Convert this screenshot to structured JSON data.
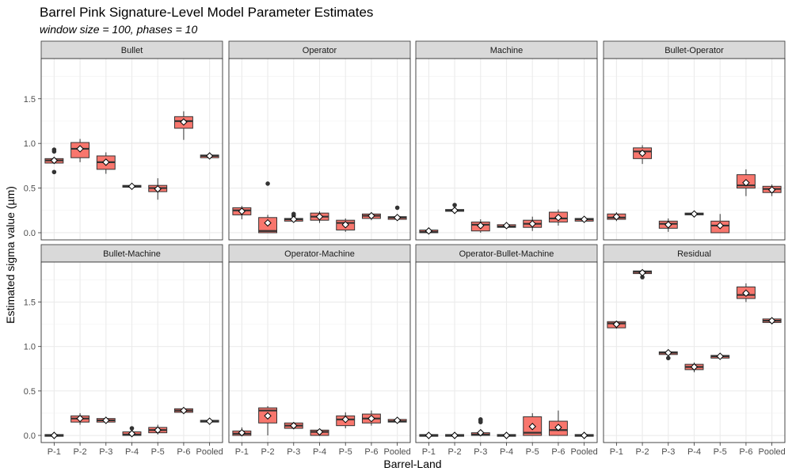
{
  "title": "Barrel Pink Signature-Level Model Parameter Estimates",
  "subtitle": "window size = 100, phases = 10",
  "chart_data": {
    "type": "box",
    "xlabel": "Barrel-Land",
    "ylabel": "Estimated sigma value (µm)",
    "categories": [
      "P-1",
      "P-2",
      "P-3",
      "P-4",
      "P-5",
      "P-6",
      "Pooled"
    ],
    "ylim": [
      -0.08,
      1.95
    ],
    "yticks": [
      0.0,
      0.5,
      1.0,
      1.5
    ],
    "ytick_labels": [
      "0.0",
      "0.5",
      "1.0",
      "1.5"
    ],
    "grid": true,
    "box_fill": "#F8766D",
    "box_stroke": "#333333",
    "panels": [
      {
        "name": "Bullet",
        "boxes": [
          {
            "q1": 0.78,
            "median": 0.81,
            "q3": 0.83,
            "min": 0.77,
            "max": 0.84,
            "mean": 0.81,
            "outliers": [
              0.93,
              0.91,
              0.68
            ]
          },
          {
            "q1": 0.84,
            "median": 0.94,
            "q3": 1.01,
            "min": 0.79,
            "max": 1.05,
            "mean": 0.94,
            "outliers": []
          },
          {
            "q1": 0.71,
            "median": 0.79,
            "q3": 0.86,
            "min": 0.66,
            "max": 0.9,
            "mean": 0.79,
            "outliers": []
          },
          {
            "q1": 0.51,
            "median": 0.52,
            "q3": 0.53,
            "min": 0.5,
            "max": 0.53,
            "mean": 0.52,
            "outliers": []
          },
          {
            "q1": 0.46,
            "median": 0.5,
            "q3": 0.53,
            "min": 0.37,
            "max": 0.61,
            "mean": 0.49,
            "outliers": []
          },
          {
            "q1": 1.17,
            "median": 1.25,
            "q3": 1.3,
            "min": 1.04,
            "max": 1.36,
            "mean": 1.24,
            "outliers": []
          },
          {
            "q1": 0.84,
            "median": 0.86,
            "q3": 0.87,
            "min": 0.83,
            "max": 0.88,
            "mean": 0.86,
            "outliers": []
          }
        ]
      },
      {
        "name": "Operator",
        "boxes": [
          {
            "q1": 0.2,
            "median": 0.25,
            "q3": 0.28,
            "min": 0.15,
            "max": 0.3,
            "mean": 0.24,
            "outliers": []
          },
          {
            "q1": 0.0,
            "median": 0.02,
            "q3": 0.17,
            "min": 0.0,
            "max": 0.2,
            "mean": 0.11,
            "outliers": [
              0.55
            ]
          },
          {
            "q1": 0.13,
            "median": 0.15,
            "q3": 0.16,
            "min": 0.12,
            "max": 0.17,
            "mean": 0.15,
            "outliers": [
              0.21,
              0.19
            ]
          },
          {
            "q1": 0.14,
            "median": 0.18,
            "q3": 0.22,
            "min": 0.11,
            "max": 0.24,
            "mean": 0.18,
            "outliers": []
          },
          {
            "q1": 0.03,
            "median": 0.11,
            "q3": 0.14,
            "min": 0.01,
            "max": 0.16,
            "mean": 0.09,
            "outliers": []
          },
          {
            "q1": 0.16,
            "median": 0.19,
            "q3": 0.21,
            "min": 0.14,
            "max": 0.23,
            "mean": 0.19,
            "outliers": []
          },
          {
            "q1": 0.15,
            "median": 0.17,
            "q3": 0.18,
            "min": 0.14,
            "max": 0.19,
            "mean": 0.17,
            "outliers": [
              0.28
            ]
          }
        ]
      },
      {
        "name": "Machine",
        "boxes": [
          {
            "q1": 0.0,
            "median": 0.01,
            "q3": 0.03,
            "min": 0.0,
            "max": 0.04,
            "mean": 0.02,
            "outliers": []
          },
          {
            "q1": 0.24,
            "median": 0.25,
            "q3": 0.26,
            "min": 0.23,
            "max": 0.27,
            "mean": 0.25,
            "outliers": [
              0.31
            ]
          },
          {
            "q1": 0.02,
            "median": 0.09,
            "q3": 0.12,
            "min": 0.0,
            "max": 0.15,
            "mean": 0.08,
            "outliers": []
          },
          {
            "q1": 0.06,
            "median": 0.07,
            "q3": 0.09,
            "min": 0.05,
            "max": 0.1,
            "mean": 0.08,
            "outliers": []
          },
          {
            "q1": 0.06,
            "median": 0.1,
            "q3": 0.14,
            "min": 0.02,
            "max": 0.18,
            "mean": 0.1,
            "outliers": []
          },
          {
            "q1": 0.12,
            "median": 0.16,
            "q3": 0.23,
            "min": 0.08,
            "max": 0.26,
            "mean": 0.17,
            "outliers": []
          },
          {
            "q1": 0.13,
            "median": 0.15,
            "q3": 0.16,
            "min": 0.12,
            "max": 0.17,
            "mean": 0.15,
            "outliers": []
          }
        ]
      },
      {
        "name": "Bullet-Operator",
        "boxes": [
          {
            "q1": 0.15,
            "median": 0.17,
            "q3": 0.21,
            "min": 0.13,
            "max": 0.23,
            "mean": 0.18,
            "outliers": []
          },
          {
            "q1": 0.83,
            "median": 0.91,
            "q3": 0.95,
            "min": 0.77,
            "max": 0.98,
            "mean": 0.89,
            "outliers": []
          },
          {
            "q1": 0.05,
            "median": 0.1,
            "q3": 0.13,
            "min": 0.01,
            "max": 0.16,
            "mean": 0.09,
            "outliers": []
          },
          {
            "q1": 0.2,
            "median": 0.21,
            "q3": 0.22,
            "min": 0.19,
            "max": 0.23,
            "mean": 0.21,
            "outliers": []
          },
          {
            "q1": 0.0,
            "median": 0.08,
            "q3": 0.13,
            "min": 0.0,
            "max": 0.21,
            "mean": 0.08,
            "outliers": []
          },
          {
            "q1": 0.5,
            "median": 0.53,
            "q3": 0.65,
            "min": 0.41,
            "max": 0.71,
            "mean": 0.56,
            "outliers": []
          },
          {
            "q1": 0.45,
            "median": 0.49,
            "q3": 0.52,
            "min": 0.41,
            "max": 0.54,
            "mean": 0.48,
            "outliers": []
          }
        ]
      },
      {
        "name": "Bullet-Machine",
        "boxes": [
          {
            "q1": -0.01,
            "median": 0.0,
            "q3": 0.01,
            "min": -0.02,
            "max": 0.01,
            "mean": 0.0,
            "outliers": []
          },
          {
            "q1": 0.15,
            "median": 0.19,
            "q3": 0.22,
            "min": 0.12,
            "max": 0.25,
            "mean": 0.19,
            "outliers": []
          },
          {
            "q1": 0.15,
            "median": 0.17,
            "q3": 0.19,
            "min": 0.13,
            "max": 0.21,
            "mean": 0.17,
            "outliers": []
          },
          {
            "q1": 0.0,
            "median": 0.01,
            "q3": 0.04,
            "min": 0.0,
            "max": 0.05,
            "mean": 0.02,
            "outliers": [
              0.08
            ]
          },
          {
            "q1": 0.03,
            "median": 0.06,
            "q3": 0.09,
            "min": 0.01,
            "max": 0.12,
            "mean": 0.06,
            "outliers": []
          },
          {
            "q1": 0.26,
            "median": 0.28,
            "q3": 0.3,
            "min": 0.24,
            "max": 0.32,
            "mean": 0.28,
            "outliers": []
          },
          {
            "q1": 0.15,
            "median": 0.16,
            "q3": 0.17,
            "min": 0.15,
            "max": 0.18,
            "mean": 0.16,
            "outliers": []
          }
        ]
      },
      {
        "name": "Operator-Machine",
        "boxes": [
          {
            "q1": 0.0,
            "median": 0.02,
            "q3": 0.05,
            "min": 0.0,
            "max": 0.09,
            "mean": 0.03,
            "outliers": []
          },
          {
            "q1": 0.14,
            "median": 0.28,
            "q3": 0.31,
            "min": 0.0,
            "max": 0.33,
            "mean": 0.22,
            "outliers": []
          },
          {
            "q1": 0.08,
            "median": 0.11,
            "q3": 0.14,
            "min": 0.07,
            "max": 0.15,
            "mean": 0.11,
            "outliers": []
          },
          {
            "q1": 0.0,
            "median": 0.04,
            "q3": 0.06,
            "min": 0.0,
            "max": 0.07,
            "mean": 0.04,
            "outliers": []
          },
          {
            "q1": 0.11,
            "median": 0.18,
            "q3": 0.22,
            "min": 0.08,
            "max": 0.26,
            "mean": 0.18,
            "outliers": []
          },
          {
            "q1": 0.14,
            "median": 0.19,
            "q3": 0.24,
            "min": 0.11,
            "max": 0.28,
            "mean": 0.19,
            "outliers": []
          },
          {
            "q1": 0.15,
            "median": 0.16,
            "q3": 0.18,
            "min": 0.14,
            "max": 0.19,
            "mean": 0.17,
            "outliers": []
          }
        ]
      },
      {
        "name": "Operator-Bullet-Machine",
        "boxes": [
          {
            "q1": -0.01,
            "median": 0.0,
            "q3": 0.01,
            "min": -0.02,
            "max": 0.01,
            "mean": 0.0,
            "outliers": []
          },
          {
            "q1": -0.01,
            "median": 0.0,
            "q3": 0.01,
            "min": -0.02,
            "max": 0.01,
            "mean": 0.0,
            "outliers": []
          },
          {
            "q1": 0.0,
            "median": 0.01,
            "q3": 0.03,
            "min": 0.0,
            "max": 0.05,
            "mean": 0.03,
            "outliers": [
              0.18,
              0.17,
              0.15
            ]
          },
          {
            "q1": -0.01,
            "median": 0.0,
            "q3": 0.01,
            "min": -0.02,
            "max": 0.01,
            "mean": 0.0,
            "outliers": []
          },
          {
            "q1": 0.0,
            "median": 0.03,
            "q3": 0.21,
            "min": 0.0,
            "max": 0.25,
            "mean": 0.1,
            "outliers": []
          },
          {
            "q1": 0.0,
            "median": 0.06,
            "q3": 0.16,
            "min": 0.0,
            "max": 0.28,
            "mean": 0.09,
            "outliers": []
          },
          {
            "q1": -0.01,
            "median": 0.0,
            "q3": 0.01,
            "min": -0.02,
            "max": 0.01,
            "mean": 0.0,
            "outliers": []
          }
        ]
      },
      {
        "name": "Residual",
        "boxes": [
          {
            "q1": 1.21,
            "median": 1.26,
            "q3": 1.28,
            "min": 1.2,
            "max": 1.29,
            "mean": 1.25,
            "outliers": []
          },
          {
            "q1": 1.82,
            "median": 1.84,
            "q3": 1.85,
            "min": 1.8,
            "max": 1.86,
            "mean": 1.83,
            "outliers": [
              1.78
            ]
          },
          {
            "q1": 0.91,
            "median": 0.93,
            "q3": 0.94,
            "min": 0.9,
            "max": 0.95,
            "mean": 0.93,
            "outliers": [
              0.87
            ]
          },
          {
            "q1": 0.74,
            "median": 0.77,
            "q3": 0.8,
            "min": 0.71,
            "max": 0.82,
            "mean": 0.77,
            "outliers": []
          },
          {
            "q1": 0.87,
            "median": 0.89,
            "q3": 0.9,
            "min": 0.86,
            "max": 0.91,
            "mean": 0.89,
            "outliers": []
          },
          {
            "q1": 1.54,
            "median": 1.58,
            "q3": 1.67,
            "min": 1.5,
            "max": 1.71,
            "mean": 1.6,
            "outliers": []
          },
          {
            "q1": 1.27,
            "median": 1.29,
            "q3": 1.31,
            "min": 1.26,
            "max": 1.32,
            "mean": 1.29,
            "outliers": []
          }
        ]
      }
    ]
  }
}
